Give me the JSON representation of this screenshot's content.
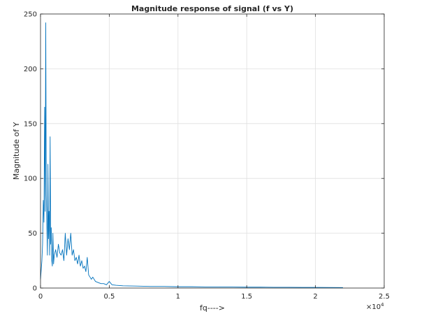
{
  "chart_data": {
    "type": "line",
    "title": "Magnitude response of signal (f vs Y)",
    "xlabel": "fq---->",
    "ylabel": "Magnitude of Y",
    "x_exponent_label": "×10",
    "x_exponent_power": "4",
    "xlim": [
      0,
      25000
    ],
    "ylim": [
      0,
      250
    ],
    "x_ticks": [
      0,
      5000,
      10000,
      15000,
      20000,
      25000
    ],
    "x_tick_labels": [
      "0",
      "0.5",
      "1",
      "1.5",
      "2",
      "2.5"
    ],
    "y_ticks": [
      0,
      50,
      100,
      150,
      200,
      250
    ],
    "y_tick_labels": [
      "0",
      "50",
      "100",
      "150",
      "200",
      "250"
    ],
    "grid": true,
    "line_color": "#0072BD",
    "series": [
      {
        "x": [
          0,
          100,
          150,
          200,
          250,
          300,
          340,
          380,
          420,
          460,
          500,
          540,
          580,
          620,
          660,
          700,
          740,
          780,
          820,
          860,
          900,
          950,
          1000,
          1100,
          1200,
          1300,
          1400,
          1500,
          1600,
          1700,
          1800,
          1900,
          2000,
          2100,
          2200,
          2300,
          2400,
          2500,
          2600,
          2700,
          2800,
          2900,
          3000,
          3100,
          3200,
          3300,
          3400,
          3500,
          3600,
          3700,
          3800,
          4000,
          4200,
          4400,
          4600,
          4800,
          5000,
          5200,
          5500,
          6000,
          7000,
          8000,
          9000,
          10000,
          11000,
          12000,
          13000,
          14000,
          15000,
          16000,
          17000,
          18000,
          19000,
          20000,
          21000,
          22000
        ],
        "y": [
          8,
          25,
          40,
          80,
          60,
          165,
          70,
          242,
          85,
          60,
          30,
          113,
          45,
          70,
          30,
          138,
          40,
          55,
          25,
          20,
          50,
          22,
          30,
          35,
          28,
          40,
          32,
          30,
          35,
          25,
          50,
          30,
          45,
          35,
          50,
          30,
          35,
          25,
          28,
          22,
          30,
          20,
          25,
          18,
          20,
          15,
          28,
          12,
          10,
          8,
          10,
          6,
          5,
          4,
          4,
          3,
          6,
          3,
          2.5,
          2,
          1.8,
          1.5,
          1.5,
          1.2,
          1.2,
          1.0,
          1.0,
          0.9,
          0.8,
          0.8,
          0.7,
          0.7,
          0.6,
          0.6,
          0.5,
          0.4
        ]
      }
    ]
  }
}
